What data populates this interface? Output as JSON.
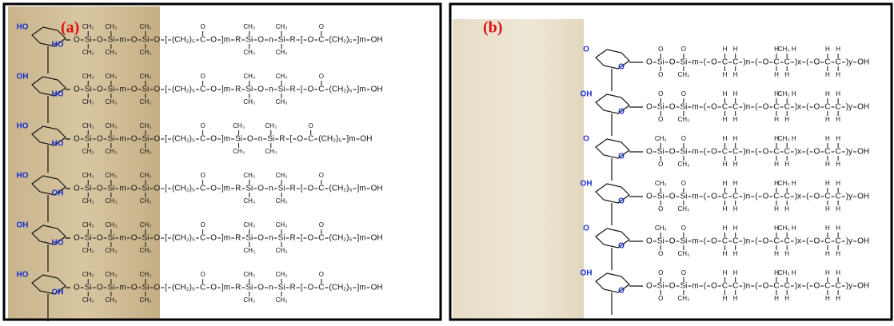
{
  "panels": [
    {
      "label": "(a)",
      "rows": [
        {
          "sugar": [
            "HO",
            "HO"
          ],
          "chain": [
            "O",
            {
              "t": "Si",
              "up": "CH₃",
              "dn": "CH₃"
            },
            "O",
            {
              "t": "Si",
              "up": "CH₃",
              "dn": "CH₃"
            },
            "m",
            "O",
            {
              "t": "Si",
              "up": "CH₃",
              "dn": "CH₃"
            },
            "O",
            "[",
            "(CH₂)₅",
            {
              "t": "C",
              "up": "O"
            },
            "O",
            "]m",
            "R",
            {
              "t": "Si",
              "up": "CH₃",
              "dn": "CH₃"
            },
            "O",
            "n",
            {
              "t": "Si",
              "up": "CH₃",
              "dn": "CH₃"
            },
            "R",
            "[",
            "O",
            {
              "t": "C",
              "up": "O"
            },
            "(CH₂)₅",
            "]m",
            "OH"
          ]
        },
        {
          "sugar": [
            "OH",
            "HO"
          ],
          "chain": [
            "O",
            {
              "t": "Si",
              "up": "CH₃",
              "dn": "CH₃"
            },
            "O",
            {
              "t": "Si",
              "up": "CH₃",
              "dn": "CH₃"
            },
            "m",
            "O",
            {
              "t": "Si",
              "up": "CH₃",
              "dn": "CH₃"
            },
            "O",
            "[",
            "(CH₂)₅",
            {
              "t": "C",
              "up": "O"
            },
            "O",
            "]m",
            "R",
            {
              "t": "Si",
              "up": "CH₃",
              "dn": "CH₃"
            },
            "O",
            "n",
            {
              "t": "Si",
              "up": "CH₃",
              "dn": "CH₃"
            },
            "R",
            "[",
            "O",
            {
              "t": "C",
              "up": "O"
            },
            "(CH₂)₅",
            "]m",
            "OH"
          ]
        },
        {
          "sugar": [
            "HO",
            "HO"
          ],
          "chain": [
            "O",
            {
              "t": "Si",
              "up": "CH₃",
              "dn": "CH₃"
            },
            "O",
            {
              "t": "Si",
              "up": "CH₃",
              "dn": "CH₃"
            },
            "m",
            "O",
            {
              "t": "Si",
              "up": "CH₃",
              "dn": "CH₃"
            },
            "O",
            "[",
            "(CH₂)₅",
            {
              "t": "C",
              "up": "O"
            },
            "O",
            "]m",
            {
              "t": "Si",
              "up": "CH₃",
              "dn": "CH₃"
            },
            "O",
            "n",
            {
              "t": "Si",
              "up": "CH₃",
              "dn": "CH₃"
            },
            "R",
            "[",
            "O",
            {
              "t": "C",
              "up": "O"
            },
            "(CH₂)₅",
            "]m",
            "OH"
          ]
        },
        {
          "sugar": [
            "HO",
            "OH"
          ],
          "chain": [
            "O",
            {
              "t": "Si",
              "up": "CH₃",
              "dn": "CH₃"
            },
            "O",
            {
              "t": "Si",
              "up": "CH₃",
              "dn": "CH₃"
            },
            "m",
            "O",
            {
              "t": "Si",
              "up": "CH₃",
              "dn": "CH₃"
            },
            "O",
            "[",
            "(CH₂)₅",
            {
              "t": "C",
              "up": "O"
            },
            "O",
            "]m",
            "R",
            {
              "t": "Si",
              "up": "CH₃",
              "dn": "CH₃"
            },
            "O",
            "n",
            {
              "t": "Si",
              "up": "CH₃",
              "dn": "CH₃"
            },
            "R",
            "[",
            "O",
            {
              "t": "C",
              "up": "O"
            },
            "(CH₂)₅",
            "]m",
            "OH"
          ]
        },
        {
          "sugar": [
            "OH",
            "HO"
          ],
          "chain": [
            "O",
            {
              "t": "Si",
              "up": "CH₃",
              "dn": "CH₃"
            },
            "O",
            {
              "t": "Si",
              "up": "CH₃",
              "dn": "CH₃"
            },
            "m",
            "O",
            {
              "t": "Si",
              "up": "CH₃",
              "dn": "CH₃"
            },
            "O",
            "[",
            "(CH₂)₅",
            {
              "t": "C",
              "up": "O"
            },
            "O",
            "]m",
            "R",
            {
              "t": "Si",
              "up": "CH₃",
              "dn": "CH₃"
            },
            "O",
            "n",
            {
              "t": "Si",
              "up": "CH₃",
              "dn": "CH₃"
            },
            "R",
            "[",
            "O",
            {
              "t": "C",
              "up": "O"
            },
            "(CH₂)₅",
            "]m",
            "OH"
          ]
        },
        {
          "sugar": [
            "HO",
            "OH"
          ],
          "chain": [
            "O",
            {
              "t": "Si",
              "up": "CH₃",
              "dn": "CH₃"
            },
            "O",
            {
              "t": "Si",
              "up": "CH₃",
              "dn": "CH₃"
            },
            "m",
            "O",
            {
              "t": "Si",
              "up": "CH₃",
              "dn": "CH₃"
            },
            "O",
            "[",
            "(CH₂)₅",
            {
              "t": "C",
              "up": "O"
            },
            "O",
            "]m",
            "R",
            {
              "t": "Si",
              "up": "CH₃",
              "dn": "CH₃"
            },
            "O",
            "n",
            {
              "t": "Si",
              "up": "CH₃",
              "dn": "CH₃"
            },
            "R",
            "[",
            "O",
            {
              "t": "C",
              "up": "O"
            },
            "(CH₂)₅",
            "]m",
            "OH"
          ]
        }
      ]
    },
    {
      "label": "(b)",
      "rows": [
        {
          "sugar": [
            "O",
            "O"
          ],
          "chain": [
            "O",
            {
              "t": "Si",
              "up": "O",
              "dn": "O"
            },
            "O",
            {
              "t": "Si",
              "up": "O",
              "dn": "CH₃"
            },
            "m",
            "(",
            "O",
            {
              "t": "C",
              "up": "H",
              "dn": "H"
            },
            {
              "t": "C",
              "up": "H",
              "dn": "H"
            },
            ")n",
            "(",
            "O",
            {
              "t": "C",
              "up": "H",
              "dn": "H"
            },
            {
              "t": "C",
              "up": "CH₃ H",
              "dn": "H"
            },
            ")x",
            "(",
            "O",
            {
              "t": "C",
              "up": "H",
              "dn": "H"
            },
            {
              "t": "C",
              "up": "H",
              "dn": "H"
            },
            ")y",
            "OH"
          ]
        },
        {
          "sugar": [
            "OH",
            "O"
          ],
          "chain": [
            "O",
            {
              "t": "Si",
              "up": "O",
              "dn": "O"
            },
            "O",
            {
              "t": "Si",
              "up": "O",
              "dn": "CH₃"
            },
            "m",
            "(",
            "O",
            {
              "t": "C",
              "up": "H",
              "dn": "H"
            },
            {
              "t": "C",
              "up": "H",
              "dn": "H"
            },
            ")n",
            "(",
            "O",
            {
              "t": "C",
              "up": "H",
              "dn": "H"
            },
            {
              "t": "C",
              "up": "CH₃ H",
              "dn": "H"
            },
            ")x",
            "(",
            "O",
            {
              "t": "C",
              "up": "H",
              "dn": "H"
            },
            {
              "t": "C",
              "up": "H",
              "dn": "H"
            },
            ")y",
            "OH"
          ]
        },
        {
          "sugar": [
            "O",
            "O"
          ],
          "chain": [
            "O",
            {
              "t": "Si",
              "up": "CH₃",
              "dn": "O"
            },
            "O",
            {
              "t": "Si",
              "up": "O",
              "dn": "CH₃"
            },
            "m",
            "(",
            "O",
            {
              "t": "C",
              "up": "H",
              "dn": "H"
            },
            {
              "t": "C",
              "up": "H",
              "dn": "H"
            },
            ")n",
            "(",
            "O",
            {
              "t": "C",
              "up": "H",
              "dn": "H"
            },
            {
              "t": "C",
              "up": "CH₃ H",
              "dn": "H"
            },
            ")x",
            "(",
            "O",
            {
              "t": "C",
              "up": "H",
              "dn": "H"
            },
            {
              "t": "C",
              "up": "H",
              "dn": "H"
            },
            ")y",
            "OH"
          ]
        },
        {
          "sugar": [
            "OH",
            "O"
          ],
          "chain": [
            "O",
            {
              "t": "Si",
              "up": "CH₃",
              "dn": "O"
            },
            "O",
            {
              "t": "Si",
              "up": "O",
              "dn": "CH₃"
            },
            "m",
            "(",
            "O",
            {
              "t": "C",
              "up": "H",
              "dn": "H"
            },
            {
              "t": "C",
              "up": "H",
              "dn": "H"
            },
            ")n",
            "(",
            "O",
            {
              "t": "C",
              "up": "H",
              "dn": "H"
            },
            {
              "t": "C",
              "up": "CH₃ H",
              "dn": "H"
            },
            ")x",
            "(",
            "O",
            {
              "t": "C",
              "up": "H",
              "dn": "H"
            },
            {
              "t": "C",
              "up": "H",
              "dn": "H"
            },
            ")y",
            "OH"
          ]
        },
        {
          "sugar": [
            "O",
            "O"
          ],
          "chain": [
            "O",
            {
              "t": "Si",
              "up": "CH₃",
              "dn": "O"
            },
            "O",
            {
              "t": "Si",
              "up": "O",
              "dn": "CH₃"
            },
            "m",
            "(",
            "O",
            {
              "t": "C",
              "up": "H",
              "dn": "H"
            },
            {
              "t": "C",
              "up": "H",
              "dn": "H"
            },
            ")n",
            "(",
            "O",
            {
              "t": "C",
              "up": "H",
              "dn": "H"
            },
            {
              "t": "C",
              "up": "CH₃ H",
              "dn": "H"
            },
            ")x",
            "(",
            "O",
            {
              "t": "C",
              "up": "H",
              "dn": "H"
            },
            {
              "t": "C",
              "up": "H",
              "dn": "H"
            },
            ")y",
            "OH"
          ]
        },
        {
          "sugar": [
            "OH",
            "O"
          ],
          "chain": [
            "O",
            {
              "t": "Si",
              "up": "O",
              "dn": "O"
            },
            "O",
            {
              "t": "Si",
              "up": "O",
              "dn": "CH₃"
            },
            "m",
            "(",
            "O",
            {
              "t": "C",
              "up": "H",
              "dn": "H"
            },
            {
              "t": "C",
              "up": "H",
              "dn": "H"
            },
            ")n",
            "(",
            "O",
            {
              "t": "C",
              "up": "H",
              "dn": "H"
            },
            {
              "t": "C",
              "up": "CH₃ H",
              "dn": "H"
            },
            ")x",
            "(",
            "O",
            {
              "t": "C",
              "up": "H",
              "dn": "H"
            },
            {
              "t": "C",
              "up": "H",
              "dn": "H"
            },
            ")y",
            "OH"
          ]
        }
      ]
    }
  ]
}
